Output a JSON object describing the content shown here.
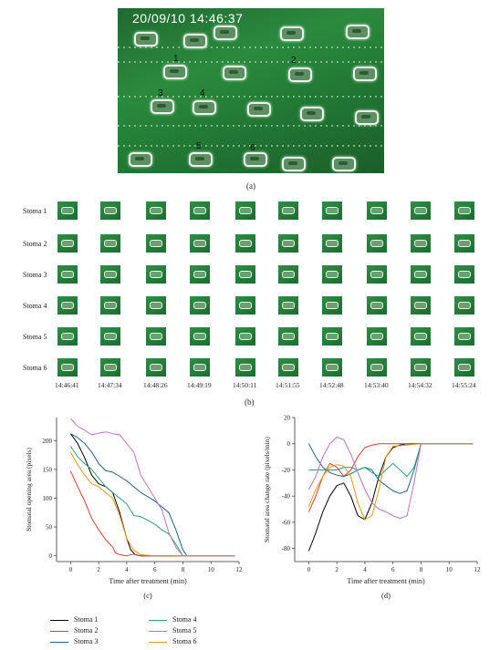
{
  "panel_a": {
    "timestamp": "20/09/10 14:46:37",
    "markers": [
      "1",
      "2",
      "3",
      "4",
      "5",
      "6"
    ],
    "caption": "(a)"
  },
  "panel_b": {
    "rows": [
      "Stoma 1",
      "Stoma 2",
      "Stoma 3",
      "Stoma 4",
      "Stoma 5",
      "Stoma 6"
    ],
    "times": [
      "14:46:41",
      "14:47:34",
      "14:48:26",
      "14:49:19",
      "14:50:11",
      "14:51:55",
      "14:52:48",
      "14:53:40",
      "14:54:32",
      "14:55:24"
    ],
    "caption": "(b)"
  },
  "legend": [
    {
      "name": "Stoma 1",
      "color": "#000000"
    },
    {
      "name": "Stoma 2",
      "color": "#d0422c"
    },
    {
      "name": "Stoma 3",
      "color": "#1f5f8f"
    },
    {
      "name": "Stoma 4",
      "color": "#2aa07a"
    },
    {
      "name": "Stoma 5",
      "color": "#c470c8"
    },
    {
      "name": "Stoma 6",
      "color": "#e09a1a"
    }
  ],
  "chart_data": [
    {
      "type": "line",
      "caption": "(c)",
      "xlabel": "Time after treatment (min)",
      "ylabel": "Stomatal opening area (pixels)",
      "xlim": [
        -1,
        12
      ],
      "ylim": [
        -10,
        240
      ],
      "xticks": [
        0,
        2,
        4,
        6,
        8,
        10,
        12
      ],
      "yticks": [
        0,
        50,
        100,
        150,
        200
      ],
      "series": [
        {
          "name": "Stoma 1",
          "color": "#000000",
          "x": [
            0,
            0.5,
            1,
            1.5,
            2,
            2.5,
            3,
            3.5,
            4,
            4.3,
            4.6,
            5,
            6,
            8,
            10,
            11.7
          ],
          "y": [
            212,
            195,
            170,
            140,
            125,
            120,
            110,
            75,
            30,
            10,
            2,
            0,
            0,
            0,
            0,
            0
          ]
        },
        {
          "name": "Stoma 2",
          "color": "#d0422c",
          "x": [
            0,
            0.5,
            1,
            1.5,
            2,
            2.5,
            3,
            3.2,
            3.5,
            4,
            4.5,
            5,
            6,
            8,
            10,
            11.7
          ],
          "y": [
            147,
            120,
            95,
            65,
            45,
            28,
            15,
            5,
            2,
            0,
            3,
            0,
            0,
            0,
            0,
            0
          ]
        },
        {
          "name": "Stoma 3",
          "color": "#1f5f8f",
          "x": [
            0,
            0.5,
            1,
            1.5,
            2,
            2.5,
            3,
            3.5,
            4,
            5,
            6,
            7,
            7.5,
            8,
            8.3,
            10,
            11.7
          ],
          "y": [
            212,
            205,
            195,
            180,
            160,
            148,
            145,
            138,
            130,
            110,
            95,
            75,
            45,
            10,
            0,
            0,
            0
          ]
        },
        {
          "name": "Stoma 4",
          "color": "#2aa07a",
          "x": [
            0,
            0.5,
            1,
            1.5,
            2,
            2.5,
            3,
            4,
            4.5,
            5,
            6,
            6.5,
            7,
            7.5,
            8,
            10,
            11.7
          ],
          "y": [
            190,
            172,
            160,
            150,
            135,
            120,
            110,
            90,
            70,
            68,
            55,
            45,
            38,
            20,
            0,
            0,
            0
          ]
        },
        {
          "name": "Stoma 5",
          "color": "#c470c8",
          "x": [
            0,
            0.5,
            1,
            1.5,
            2,
            2.5,
            3,
            3.5,
            4,
            4.5,
            5,
            5.5,
            6,
            6.5,
            7,
            7.5,
            8,
            10,
            11.7
          ],
          "y": [
            238,
            225,
            218,
            210,
            213,
            215,
            212,
            210,
            195,
            180,
            140,
            120,
            100,
            80,
            40,
            15,
            0,
            0,
            0
          ]
        },
        {
          "name": "Stoma 6",
          "color": "#e09a1a",
          "x": [
            0,
            0.5,
            1,
            1.5,
            2,
            2.5,
            3,
            3.5,
            4,
            4.5,
            5,
            6,
            8,
            10,
            11.7
          ],
          "y": [
            180,
            158,
            140,
            125,
            120,
            110,
            100,
            70,
            30,
            10,
            2,
            0,
            0,
            0,
            0
          ]
        }
      ]
    },
    {
      "type": "line",
      "caption": "(d)",
      "xlabel": "Time after treatment (min)",
      "ylabel": "Stomatal area change rate (pixels/min)",
      "xlim": [
        -1,
        12
      ],
      "ylim": [
        -90,
        20
      ],
      "xticks": [
        0,
        2,
        4,
        6,
        8,
        10,
        12
      ],
      "yticks": [
        -80,
        -60,
        -40,
        -20,
        0,
        20
      ],
      "series": [
        {
          "name": "Stoma 1",
          "color": "#000000",
          "x": [
            0,
            0.5,
            1,
            1.5,
            2,
            2.5,
            3,
            3.5,
            4,
            4.5,
            5,
            5.5,
            6,
            6.5,
            7,
            8,
            10,
            11.7
          ],
          "y": [
            -82,
            -68,
            -52,
            -40,
            -32,
            -30,
            -40,
            -55,
            -58,
            -45,
            -25,
            -10,
            -3,
            -1,
            0,
            0,
            0,
            0
          ]
        },
        {
          "name": "Stoma 2",
          "color": "#d0422c",
          "x": [
            0,
            0.5,
            1,
            1.5,
            2,
            2.5,
            3,
            3.5,
            4,
            4.5,
            5,
            6,
            8,
            10,
            11.7
          ],
          "y": [
            -52,
            -40,
            -25,
            -15,
            -18,
            -25,
            -20,
            -10,
            -3,
            -1,
            0,
            0,
            0,
            0,
            0
          ]
        },
        {
          "name": "Stoma 3",
          "color": "#1f5f8f",
          "x": [
            0,
            0.5,
            1,
            1.5,
            2,
            2.5,
            3,
            3.5,
            4,
            4.5,
            5,
            5.5,
            6,
            6.5,
            7,
            7.5,
            8,
            10,
            11.7
          ],
          "y": [
            0,
            -10,
            -18,
            -22,
            -24,
            -25,
            -23,
            -20,
            -18,
            -20,
            -28,
            -32,
            -36,
            -38,
            -36,
            -20,
            0,
            0,
            0
          ]
        },
        {
          "name": "Stoma 4",
          "color": "#2aa07a",
          "x": [
            0,
            0.5,
            1,
            1.5,
            2,
            2.5,
            3,
            3.5,
            4,
            4.5,
            5,
            5.5,
            6,
            6.5,
            7,
            7.5,
            8,
            10,
            11.7
          ],
          "y": [
            -20,
            -20,
            -20,
            -20,
            -20,
            -18,
            -18,
            -20,
            -18,
            -22,
            -25,
            -20,
            -15,
            -20,
            -25,
            -18,
            0,
            0,
            0
          ]
        },
        {
          "name": "Stoma 5",
          "color": "#c470c8",
          "x": [
            0,
            0.5,
            1,
            1.5,
            2,
            2.5,
            3,
            3.5,
            4,
            4.5,
            5,
            5.5,
            6,
            6.5,
            7,
            7.5,
            8,
            10,
            11.7
          ],
          "y": [
            -35,
            -25,
            -10,
            0,
            5,
            3,
            -8,
            -22,
            -35,
            -45,
            -50,
            -52,
            -55,
            -57,
            -55,
            -30,
            0,
            0,
            0
          ]
        },
        {
          "name": "Stoma 6",
          "color": "#e09a1a",
          "x": [
            0,
            0.5,
            1,
            1.5,
            2,
            2.5,
            3,
            3.5,
            4,
            4.5,
            5,
            5.5,
            6,
            8,
            10,
            11.7
          ],
          "y": [
            -48,
            -35,
            -25,
            -18,
            -16,
            -17,
            -25,
            -45,
            -58,
            -55,
            -35,
            -10,
            -2,
            0,
            0,
            0
          ]
        }
      ]
    }
  ]
}
